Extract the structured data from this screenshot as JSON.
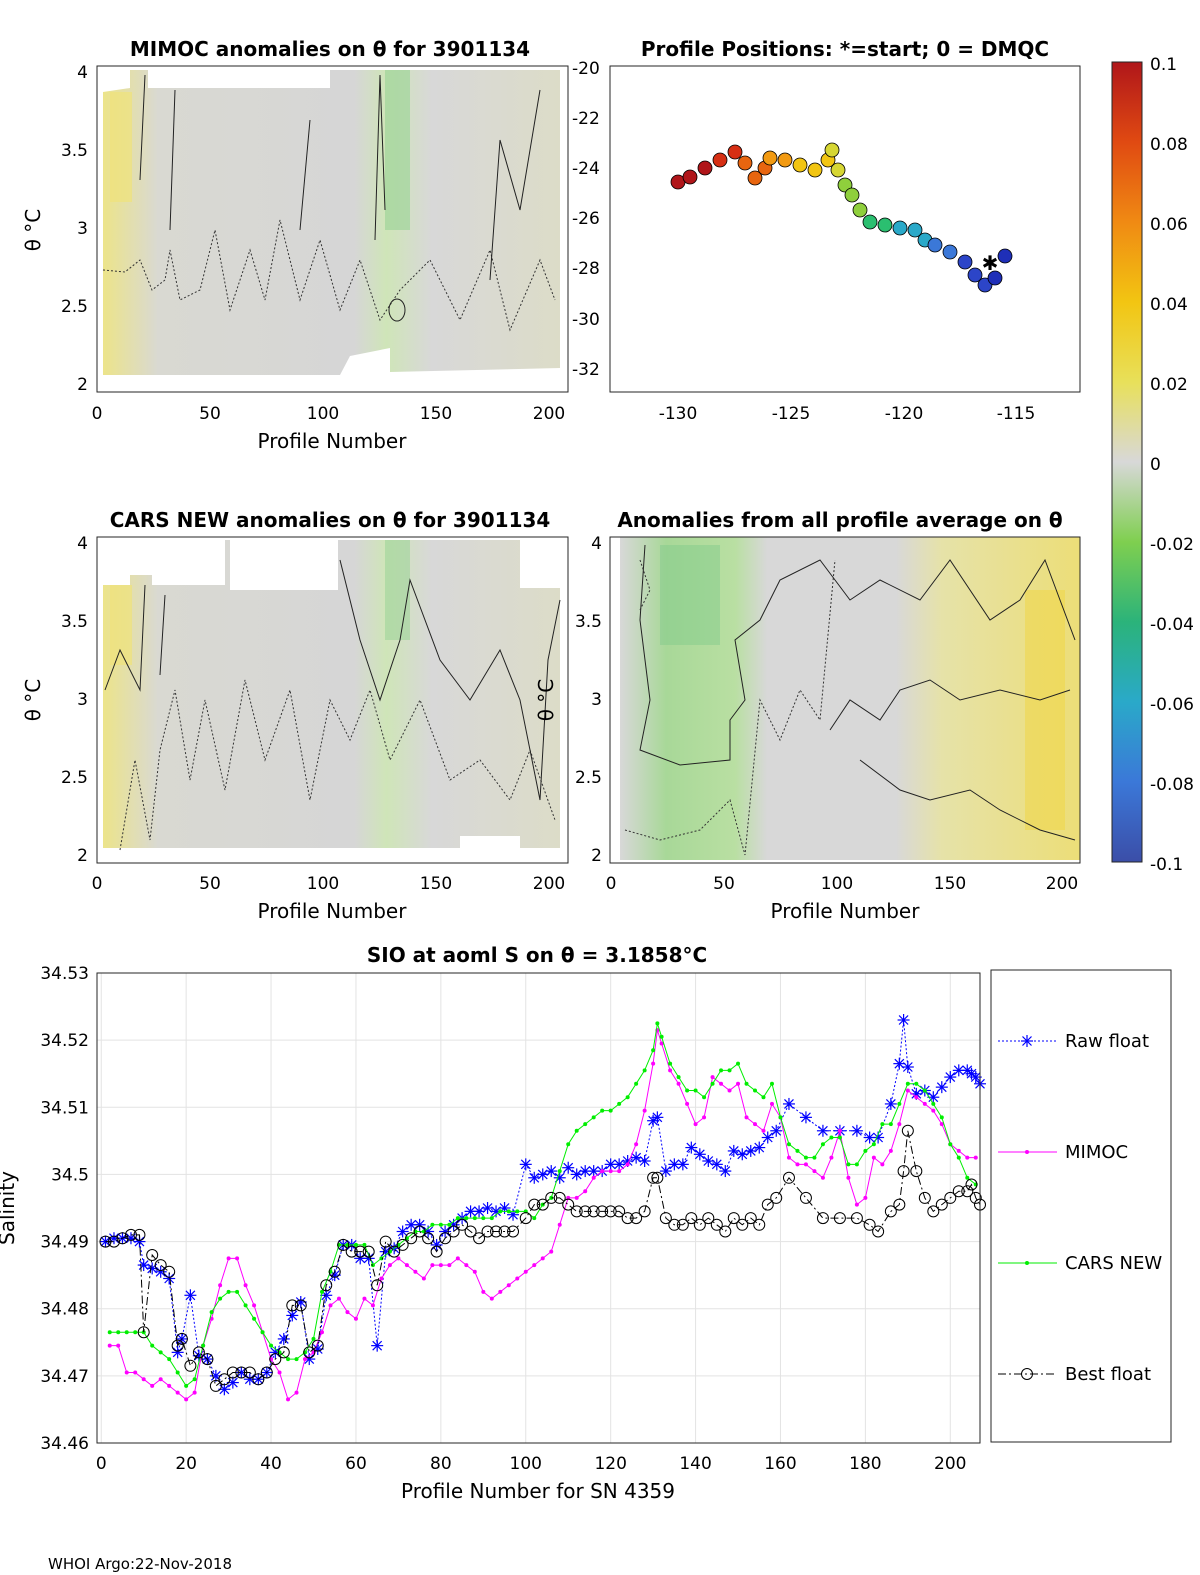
{
  "colorbar": {
    "ticks": [
      "0.1",
      "0.08",
      "0.06",
      "0.04",
      "0.02",
      "0",
      "-0.02",
      "-0.04",
      "-0.06",
      "-0.08",
      "-0.1"
    ],
    "colors": [
      "#3b4ea8",
      "#3b78d8",
      "#2aa9c9",
      "#2bb37a",
      "#7fcf4f",
      "#d8d8d8",
      "#e8e05a",
      "#f2c512",
      "#f08a13",
      "#e04a12",
      "#b0161a"
    ]
  },
  "panel_mimoc": {
    "title": "MIMOC anomalies on θ  for 3901134",
    "xlabel": "Profile Number",
    "ylabel": "θ °C",
    "xticks": [
      "0",
      "50",
      "100",
      "150",
      "200"
    ],
    "yticks": [
      "4",
      "3.5",
      "3",
      "2.5",
      "2"
    ]
  },
  "panel_positions": {
    "title": "Profile Positions: *=start; 0 = DMQC",
    "xticks": [
      "-130",
      "-125",
      "-120",
      "-115"
    ],
    "yticks": [
      "-20",
      "-22",
      "-24",
      "-26",
      "-28",
      "-30",
      "-32"
    ]
  },
  "panel_cars": {
    "title": "CARS NEW anomalies on θ for 3901134",
    "xlabel": "Profile Number",
    "ylabel": "θ °C",
    "xticks": [
      "0",
      "50",
      "100",
      "150",
      "200"
    ],
    "yticks": [
      "4",
      "3.5",
      "3",
      "2.5",
      "2"
    ]
  },
  "panel_allavg": {
    "title": "Anomalies from all profile average on θ",
    "xlabel": "Profile Number",
    "ylabel": "θ °C",
    "xticks": [
      "0",
      "50",
      "100",
      "150",
      "200"
    ],
    "yticks": [
      "4",
      "3.5",
      "3",
      "2.5",
      "2"
    ]
  },
  "footer": "WHOI Argo:22-Nov-2018",
  "chart_data": {
    "type": "line",
    "title": "SIO at aoml S on θ = 3.1858°C",
    "xlabel": "Profile Number for SN 4359",
    "ylabel": "Salinity",
    "xlim": [
      -1,
      207
    ],
    "ylim": [
      34.46,
      34.53
    ],
    "grid": true,
    "legend_position": "right",
    "xticks": [
      "0",
      "20",
      "40",
      "60",
      "80",
      "100",
      "120",
      "140",
      "160",
      "180",
      "200"
    ],
    "yticks": [
      "34.53",
      "34.52",
      "34.51",
      "34.5",
      "34.49",
      "34.48",
      "34.47",
      "34.46"
    ],
    "series": [
      {
        "name": "Raw float",
        "color": "#0000ff",
        "marker": "star",
        "x": [
          1,
          3,
          5,
          7,
          9,
          10,
          12,
          14,
          16,
          18,
          19,
          21,
          23,
          25,
          27,
          29,
          31,
          33,
          35,
          37,
          39,
          41,
          43,
          45,
          47,
          49,
          51,
          53,
          55,
          57,
          59,
          61,
          63,
          65,
          67,
          69,
          71,
          73,
          75,
          77,
          79,
          81,
          83,
          85,
          87,
          89,
          91,
          93,
          95,
          97,
          100,
          102,
          104,
          106,
          108,
          110,
          112,
          114,
          116,
          118,
          120,
          122,
          124,
          126,
          128,
          130,
          131,
          133,
          135,
          137,
          139,
          141,
          143,
          145,
          147,
          149,
          151,
          153,
          155,
          157,
          159,
          162,
          166,
          170,
          174,
          178,
          181,
          183,
          186,
          188,
          189,
          190,
          192,
          194,
          196,
          198,
          200,
          202,
          204,
          205,
          206,
          207
        ],
        "y": [
          34.49,
          34.4905,
          34.4905,
          34.4905,
          34.49,
          34.4865,
          34.486,
          34.4855,
          34.4845,
          34.4735,
          34.4755,
          34.482,
          34.473,
          34.4725,
          34.47,
          34.468,
          34.469,
          34.4705,
          34.4695,
          34.4695,
          34.4705,
          34.4735,
          34.4755,
          34.479,
          34.481,
          34.4725,
          34.474,
          34.482,
          34.485,
          34.4895,
          34.4895,
          34.4875,
          34.4875,
          34.4745,
          34.4885,
          34.489,
          34.4915,
          34.4925,
          34.4925,
          34.4915,
          34.4895,
          34.4915,
          34.4925,
          34.4935,
          34.4945,
          34.4945,
          34.495,
          34.4945,
          34.495,
          34.494,
          34.5015,
          34.4995,
          34.5,
          34.5005,
          34.4995,
          34.501,
          34.5,
          34.5005,
          34.5005,
          34.5005,
          34.5015,
          34.5015,
          34.502,
          34.5025,
          34.502,
          34.508,
          34.5085,
          34.5005,
          34.5015,
          34.5015,
          34.504,
          34.503,
          34.502,
          34.5015,
          34.5005,
          34.5035,
          34.503,
          34.5035,
          34.504,
          34.5055,
          34.5065,
          34.5105,
          34.5085,
          34.5065,
          34.5065,
          34.5065,
          34.5055,
          34.5055,
          34.5105,
          34.5165,
          34.523,
          34.516,
          34.512,
          34.5125,
          34.5115,
          34.513,
          34.5145,
          34.5155,
          34.5155,
          34.515,
          34.5145,
          34.5135
        ]
      },
      {
        "name": "MIMOC",
        "color": "#ff00ff",
        "marker": "dot",
        "x": [
          2,
          4,
          6,
          8,
          10,
          12,
          14,
          16,
          18,
          20,
          22,
          24,
          26,
          28,
          30,
          32,
          34,
          36,
          38,
          40,
          42,
          44,
          46,
          48,
          50,
          52,
          54,
          56,
          58,
          60,
          62,
          64,
          66,
          68,
          70,
          72,
          74,
          76,
          78,
          80,
          82,
          84,
          86,
          88,
          90,
          92,
          94,
          96,
          98,
          100,
          102,
          104,
          106,
          108,
          110,
          112,
          114,
          116,
          118,
          120,
          122,
          124,
          126,
          128,
          130,
          131,
          132,
          134,
          136,
          138,
          140,
          142,
          144,
          146,
          148,
          150,
          152,
          154,
          156,
          158,
          160,
          162,
          164,
          166,
          168,
          170,
          172,
          174,
          176,
          178,
          180,
          182,
          184,
          186,
          188,
          190,
          192,
          194,
          196,
          198,
          200,
          202,
          204,
          206
        ],
        "y": [
          34.4745,
          34.4745,
          34.4705,
          34.4705,
          34.4695,
          34.4685,
          34.4695,
          34.4685,
          34.4675,
          34.4665,
          34.4675,
          34.4745,
          34.4785,
          34.4835,
          34.4875,
          34.4875,
          34.4835,
          34.4805,
          34.4765,
          34.4725,
          34.4705,
          34.4665,
          34.4675,
          34.4725,
          34.4735,
          34.4765,
          34.4805,
          34.4815,
          34.4795,
          34.4785,
          34.4815,
          34.4805,
          34.4845,
          34.4865,
          34.4875,
          34.4865,
          34.4855,
          34.4845,
          34.4865,
          34.4865,
          34.4865,
          34.4875,
          34.4865,
          34.4855,
          34.4825,
          34.4815,
          34.4825,
          34.4835,
          34.4845,
          34.4855,
          34.4865,
          34.4875,
          34.4885,
          34.4925,
          34.4965,
          34.4965,
          34.4975,
          34.4995,
          34.5005,
          34.5005,
          34.5005,
          34.5015,
          34.5045,
          34.5095,
          34.5165,
          34.5215,
          34.5195,
          34.5155,
          34.5135,
          34.5105,
          34.5075,
          34.5085,
          34.5145,
          34.5135,
          34.5125,
          34.5135,
          34.5085,
          34.5075,
          34.5065,
          34.5105,
          34.5085,
          34.5025,
          34.5015,
          34.5015,
          34.5005,
          34.4995,
          34.5025,
          34.5065,
          34.4995,
          34.4955,
          34.4965,
          34.5025,
          34.5015,
          34.5035,
          34.5075,
          34.5125,
          34.5115,
          34.5105,
          34.5095,
          34.5075,
          34.5045,
          34.5035,
          34.5025,
          34.5025
        ]
      },
      {
        "name": "CARS NEW",
        "color": "#00ee00",
        "marker": "dot",
        "x": [
          2,
          4,
          6,
          8,
          10,
          12,
          14,
          16,
          18,
          20,
          22,
          24,
          26,
          28,
          30,
          32,
          34,
          36,
          38,
          40,
          42,
          44,
          46,
          48,
          50,
          52,
          54,
          56,
          58,
          60,
          62,
          64,
          66,
          68,
          70,
          72,
          74,
          76,
          78,
          80,
          82,
          84,
          86,
          88,
          90,
          92,
          94,
          96,
          98,
          100,
          102,
          104,
          106,
          108,
          110,
          112,
          114,
          116,
          118,
          120,
          122,
          124,
          126,
          128,
          130,
          131,
          132,
          134,
          136,
          138,
          140,
          142,
          144,
          146,
          148,
          150,
          152,
          154,
          156,
          158,
          160,
          162,
          164,
          166,
          168,
          170,
          172,
          174,
          176,
          178,
          180,
          182,
          184,
          186,
          188,
          190,
          192,
          194,
          196,
          198,
          200,
          202,
          204,
          206
        ],
        "y": [
          34.4765,
          34.4765,
          34.4765,
          34.4765,
          34.4765,
          34.4745,
          34.4735,
          34.4725,
          34.4705,
          34.4685,
          34.4695,
          34.4745,
          34.4795,
          34.4815,
          34.4825,
          34.4825,
          34.4805,
          34.4785,
          34.4765,
          34.4745,
          34.4735,
          34.4725,
          34.4725,
          34.4735,
          34.4755,
          34.4825,
          34.4855,
          34.4895,
          34.4895,
          34.4895,
          34.4895,
          34.4865,
          34.4875,
          34.4885,
          34.4895,
          34.4905,
          34.4915,
          34.4915,
          34.4925,
          34.4925,
          34.4925,
          34.4935,
          34.4935,
          34.4935,
          34.4935,
          34.4935,
          34.4945,
          34.4945,
          34.4945,
          34.4945,
          34.4935,
          34.4955,
          34.4965,
          34.5005,
          34.5045,
          34.5065,
          34.5075,
          34.5085,
          34.5095,
          34.5095,
          34.5105,
          34.5115,
          34.5135,
          34.5155,
          34.5185,
          34.5225,
          34.5205,
          34.5165,
          34.5145,
          34.5125,
          34.5125,
          34.5115,
          34.5135,
          34.5155,
          34.5155,
          34.5165,
          34.5135,
          34.5125,
          34.5115,
          34.5135,
          34.5085,
          34.5045,
          34.5035,
          34.5025,
          34.5025,
          34.5045,
          34.5055,
          34.5055,
          34.5015,
          34.5015,
          34.5035,
          34.5045,
          34.5075,
          34.5075,
          34.5105,
          34.5135,
          34.5135,
          34.5125,
          34.5105,
          34.5085,
          34.5045,
          34.5025,
          34.4995,
          34.4985
        ]
      },
      {
        "name": "Best float",
        "color": "#000000",
        "marker": "circle",
        "x": [
          1,
          3,
          5,
          7,
          9,
          10,
          12,
          14,
          16,
          18,
          19,
          21,
          23,
          25,
          27,
          29,
          31,
          33,
          35,
          37,
          39,
          41,
          43,
          45,
          47,
          49,
          51,
          53,
          55,
          57,
          59,
          61,
          63,
          65,
          67,
          69,
          71,
          73,
          75,
          77,
          79,
          81,
          83,
          85,
          87,
          89,
          91,
          93,
          95,
          97,
          100,
          102,
          104,
          106,
          108,
          110,
          112,
          114,
          116,
          118,
          120,
          122,
          124,
          126,
          128,
          130,
          131,
          133,
          135,
          137,
          139,
          141,
          143,
          145,
          147,
          149,
          151,
          153,
          155,
          157,
          159,
          162,
          166,
          170,
          174,
          178,
          181,
          183,
          186,
          188,
          189,
          190,
          192,
          194,
          196,
          198,
          200,
          202,
          204,
          205,
          206,
          207
        ],
        "y": [
          34.49,
          34.49,
          34.4905,
          34.491,
          34.491,
          34.4765,
          34.488,
          34.4865,
          34.4855,
          34.4745,
          34.4755,
          34.4715,
          34.4735,
          34.4725,
          34.4685,
          34.4695,
          34.4705,
          34.4705,
          34.4705,
          34.4695,
          34.4705,
          34.4725,
          34.4735,
          34.4805,
          34.4805,
          34.4735,
          34.4745,
          34.4835,
          34.4855,
          34.4895,
          34.4885,
          34.4885,
          34.4885,
          34.4835,
          34.49,
          34.4885,
          34.4895,
          34.4905,
          34.4915,
          34.4905,
          34.4885,
          34.4905,
          34.4915,
          34.4925,
          34.4915,
          34.4905,
          34.4915,
          34.4915,
          34.4915,
          34.4915,
          34.4935,
          34.4955,
          34.4955,
          34.4965,
          34.4965,
          34.4955,
          34.4945,
          34.4945,
          34.4945,
          34.4945,
          34.4945,
          34.4945,
          34.4935,
          34.4935,
          34.4945,
          34.4995,
          34.4995,
          34.4935,
          34.4925,
          34.4925,
          34.4935,
          34.4925,
          34.4935,
          34.4925,
          34.4915,
          34.4935,
          34.4925,
          34.4935,
          34.4925,
          34.4955,
          34.4965,
          34.4995,
          34.4965,
          34.4935,
          34.4935,
          34.4935,
          34.4925,
          34.4915,
          34.4945,
          34.4955,
          34.5005,
          34.5065,
          34.5005,
          34.4965,
          34.4945,
          34.4955,
          34.4965,
          34.4975,
          34.4975,
          34.4985,
          34.4965,
          34.4955
        ]
      }
    ]
  }
}
